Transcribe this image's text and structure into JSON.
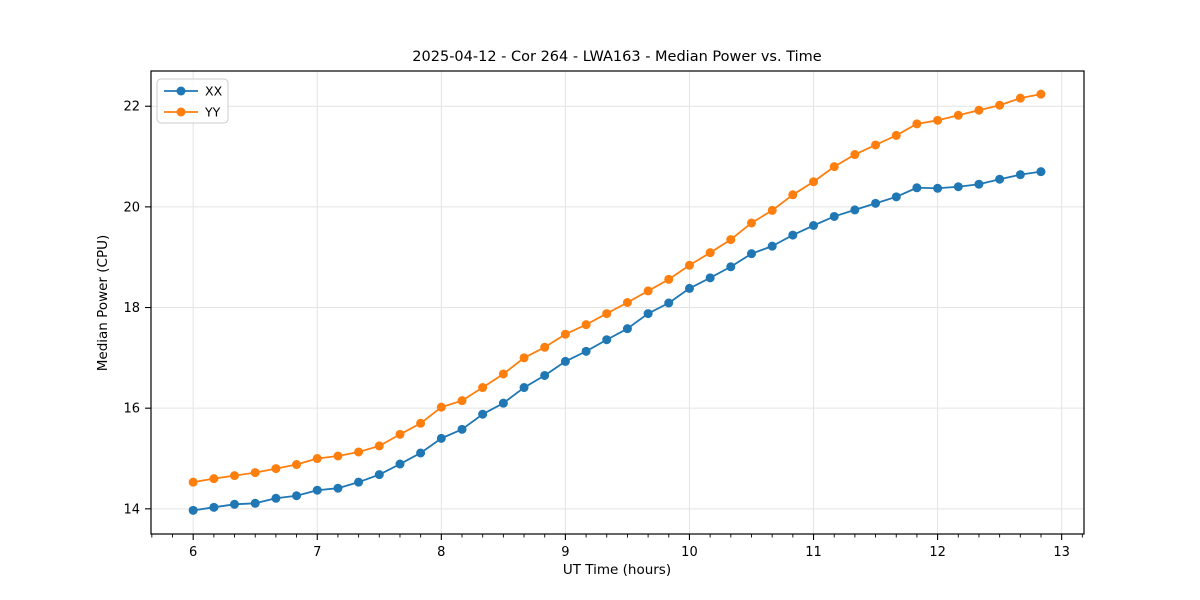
{
  "window": {
    "background": "#ffffff"
  },
  "chart_data": {
    "type": "line",
    "title": "2025-04-12 - Cor 264 - LWA163 - Median Power vs. Time",
    "xlabel": "UT Time (hours)",
    "ylabel": "Median Power (CPU)",
    "xlim": [
      5.66,
      13.18
    ],
    "ylim": [
      13.5,
      22.7
    ],
    "xticks": [
      6,
      7,
      8,
      9,
      10,
      11,
      12,
      13
    ],
    "yticks": [
      14,
      16,
      18,
      20,
      22
    ],
    "x_minor_interval": 0.166667,
    "grid": true,
    "grid_color": "#e4e4e4",
    "spine_color": "#000000",
    "legend_position": "upper-left",
    "x": [
      6.0,
      6.167,
      6.333,
      6.5,
      6.667,
      6.833,
      7.0,
      7.167,
      7.333,
      7.5,
      7.667,
      7.833,
      8.0,
      8.167,
      8.333,
      8.5,
      8.667,
      8.833,
      9.0,
      9.167,
      9.333,
      9.5,
      9.667,
      9.833,
      10.0,
      10.167,
      10.333,
      10.5,
      10.667,
      10.833,
      11.0,
      11.167,
      11.333,
      11.5,
      11.667,
      11.833,
      12.0,
      12.167,
      12.333,
      12.5,
      12.667,
      12.833
    ],
    "series": [
      {
        "name": "XX",
        "color": "#1f77b4",
        "values": [
          13.97,
          14.03,
          14.09,
          14.11,
          14.21,
          14.26,
          14.37,
          14.41,
          14.53,
          14.68,
          14.89,
          15.11,
          15.4,
          15.58,
          15.88,
          16.1,
          16.41,
          16.65,
          16.93,
          17.13,
          17.36,
          17.58,
          17.88,
          18.09,
          18.38,
          18.59,
          18.81,
          19.07,
          19.22,
          19.44,
          19.63,
          19.81,
          19.94,
          20.07,
          20.2,
          20.38,
          20.37,
          20.4,
          20.45,
          20.55,
          20.64,
          20.7
        ]
      },
      {
        "name": "YY",
        "color": "#ff7f0e",
        "values": [
          14.53,
          14.6,
          14.66,
          14.72,
          14.8,
          14.88,
          15.0,
          15.05,
          15.13,
          15.25,
          15.48,
          15.7,
          16.02,
          16.15,
          16.41,
          16.68,
          17.0,
          17.21,
          17.47,
          17.66,
          17.88,
          18.1,
          18.33,
          18.56,
          18.84,
          19.09,
          19.35,
          19.68,
          19.93,
          20.24,
          20.5,
          20.8,
          21.04,
          21.23,
          21.42,
          21.65,
          21.72,
          21.82,
          21.92,
          22.02,
          22.16,
          22.24
        ]
      }
    ]
  }
}
